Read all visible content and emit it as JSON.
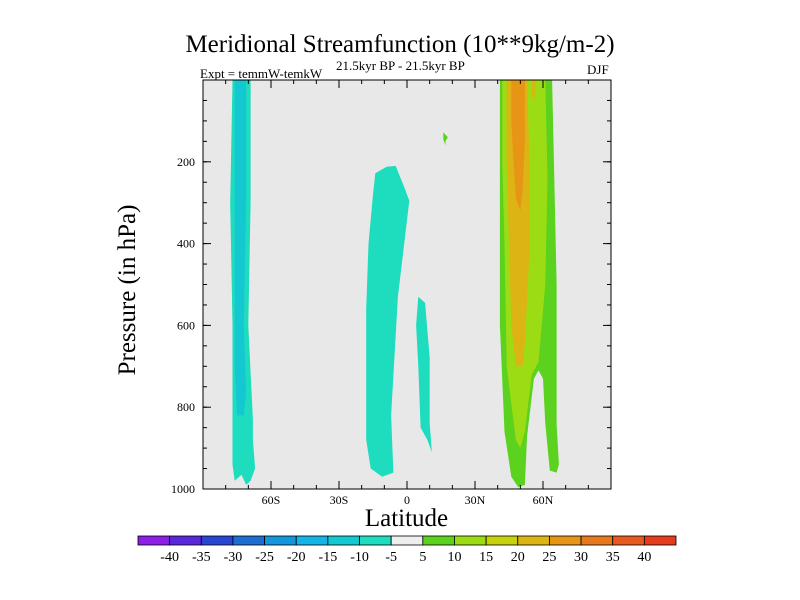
{
  "chart_data": {
    "type": "contour",
    "title": "Meridional Streamfunction (10**9kg/m-2)",
    "subtitle": "21.5kyr BP - 21.5kyr BP",
    "experiment": "Expt = temmW-temkW",
    "season": "DJF",
    "xlabel": "Latitude",
    "ylabel": "Pressure (in hPa)",
    "xlim": [
      -90,
      90
    ],
    "ylim": [
      1000,
      0
    ],
    "xticks": [
      {
        "value": -60,
        "label": "60S"
      },
      {
        "value": -30,
        "label": "30S"
      },
      {
        "value": 0,
        "label": "0"
      },
      {
        "value": 30,
        "label": "30N"
      },
      {
        "value": 60,
        "label": "60N"
      }
    ],
    "yticks": [
      {
        "value": 200,
        "label": "200"
      },
      {
        "value": 400,
        "label": "400"
      },
      {
        "value": 600,
        "label": "600"
      },
      {
        "value": 800,
        "label": "800"
      },
      {
        "value": 1000,
        "label": "1000"
      }
    ],
    "background_color": "#e8e8e8",
    "colorbar": {
      "labels": [
        "-40",
        "-35",
        "-30",
        "-25",
        "-20",
        "-15",
        "-10",
        "-5",
        "5",
        "10",
        "15",
        "20",
        "25",
        "30",
        "35",
        "40"
      ],
      "colors": [
        "#8c1ee6",
        "#5a28dc",
        "#2846d2",
        "#1e6ed2",
        "#1496dc",
        "#14b4e6",
        "#14c8d2",
        "#1edcbe",
        "#eeeeee",
        "#5ad21e",
        "#9bdc14",
        "#c8d20a",
        "#dcb414",
        "#e69614",
        "#e6781e",
        "#e65a1e",
        "#e63c1e"
      ]
    },
    "regions": [
      {
        "color": "#1edcbe",
        "points": [
          [
            -77,
            0
          ],
          [
            -69,
            0
          ],
          [
            -69,
            300
          ],
          [
            -70,
            600
          ],
          [
            -68,
            830
          ],
          [
            -68,
            880
          ],
          [
            -67,
            950
          ],
          [
            -69,
            980
          ],
          [
            -71,
            990
          ],
          [
            -73,
            965
          ],
          [
            -76,
            980
          ],
          [
            -77,
            940
          ],
          [
            -77,
            600
          ],
          [
            -78,
            300
          ]
        ]
      },
      {
        "color": "#14c8d2",
        "points": [
          [
            -76,
            0
          ],
          [
            -71,
            0
          ],
          [
            -71,
            300
          ],
          [
            -72,
            600
          ],
          [
            -71,
            760
          ],
          [
            -72,
            820
          ],
          [
            -75,
            820
          ],
          [
            -76,
            700
          ],
          [
            -76,
            300
          ]
        ]
      },
      {
        "color": "#1edcbe",
        "points": [
          [
            -14,
            228
          ],
          [
            -9,
            212
          ],
          [
            -5,
            210
          ],
          [
            -1,
            265
          ],
          [
            1,
            295
          ],
          [
            -4,
            530
          ],
          [
            -7,
            820
          ],
          [
            -6,
            960
          ],
          [
            -11,
            970
          ],
          [
            -16,
            950
          ],
          [
            -18,
            880
          ],
          [
            -18,
            560
          ],
          [
            -17,
            400
          ],
          [
            -15,
            280
          ]
        ]
      },
      {
        "color": "#1edcbe",
        "points": [
          [
            5,
            530
          ],
          [
            8,
            545
          ],
          [
            10,
            680
          ],
          [
            10,
            840
          ],
          [
            11,
            910
          ],
          [
            9,
            880
          ],
          [
            6,
            850
          ],
          [
            5,
            700
          ],
          [
            4,
            600
          ]
        ]
      },
      {
        "color": "#5ad21e",
        "points": [
          [
            16,
            128
          ],
          [
            18,
            140
          ],
          [
            17,
            150
          ],
          [
            17,
            160
          ],
          [
            16,
            145
          ]
        ]
      },
      {
        "color": "#5ad21e",
        "points": [
          [
            41,
            0
          ],
          [
            64,
            0
          ],
          [
            65,
            240
          ],
          [
            66,
            500
          ],
          [
            66,
            840
          ],
          [
            67,
            940
          ],
          [
            66,
            960
          ],
          [
            63,
            955
          ],
          [
            61,
            840
          ],
          [
            60,
            730
          ],
          [
            58,
            710
          ],
          [
            56,
            730
          ],
          [
            53,
            870
          ],
          [
            52,
            990
          ],
          [
            49,
            995
          ],
          [
            46,
            970
          ],
          [
            43,
            860
          ],
          [
            41,
            600
          ],
          [
            41,
            300
          ]
        ]
      },
      {
        "color": "#9bdc14",
        "points": [
          [
            42,
            0
          ],
          [
            61,
            0
          ],
          [
            62,
            240
          ],
          [
            61,
            500
          ],
          [
            58,
            690
          ],
          [
            55,
            720
          ],
          [
            52,
            860
          ],
          [
            50,
            900
          ],
          [
            48,
            880
          ],
          [
            44,
            700
          ],
          [
            43,
            400
          ],
          [
            42,
            200
          ]
        ]
      },
      {
        "color": "#dcb414",
        "points": [
          [
            44,
            0
          ],
          [
            53,
            0
          ],
          [
            54,
            200
          ],
          [
            54,
            420
          ],
          [
            52,
            640
          ],
          [
            51,
            700
          ],
          [
            48,
            700
          ],
          [
            46,
            600
          ],
          [
            45,
            400
          ],
          [
            44,
            200
          ]
        ]
      },
      {
        "color": "#e69614",
        "points": [
          [
            46,
            0
          ],
          [
            52,
            0
          ],
          [
            52,
            150
          ],
          [
            51,
            270
          ],
          [
            50,
            320
          ],
          [
            48,
            290
          ],
          [
            47,
            200
          ],
          [
            46,
            100
          ]
        ]
      },
      {
        "color": "#dcb414",
        "points": [
          [
            55,
            0
          ],
          [
            57,
            0
          ],
          [
            56,
            50
          ],
          [
            55,
            40
          ]
        ]
      }
    ]
  }
}
